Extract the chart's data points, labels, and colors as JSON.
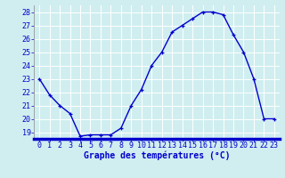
{
  "hours": [
    0,
    1,
    2,
    3,
    4,
    5,
    6,
    7,
    8,
    9,
    10,
    11,
    12,
    13,
    14,
    15,
    16,
    17,
    18,
    19,
    20,
    21,
    22,
    23
  ],
  "temperatures": [
    23.0,
    21.8,
    21.0,
    20.4,
    18.7,
    18.8,
    18.8,
    18.8,
    19.3,
    21.0,
    22.2,
    24.0,
    25.0,
    26.5,
    27.0,
    27.5,
    28.0,
    28.0,
    27.8,
    26.3,
    25.0,
    23.0,
    20.0,
    20.0
  ],
  "line_color": "#0000cc",
  "marker": "+",
  "marker_size": 3,
  "bg_color": "#d0eef0",
  "grid_color": "#b0d8dc",
  "xlabel": "Graphe des températures (°C)",
  "ylim": [
    18.5,
    28.5
  ],
  "yticks": [
    19,
    20,
    21,
    22,
    23,
    24,
    25,
    26,
    27,
    28
  ],
  "xticks": [
    0,
    1,
    2,
    3,
    4,
    5,
    6,
    7,
    8,
    9,
    10,
    11,
    12,
    13,
    14,
    15,
    16,
    17,
    18,
    19,
    20,
    21,
    22,
    23
  ],
  "xlim": [
    -0.5,
    23.5
  ],
  "font_size_label": 7,
  "font_size_tick": 6,
  "line_width": 1.0,
  "bottom_bar_color": "#0000cc"
}
